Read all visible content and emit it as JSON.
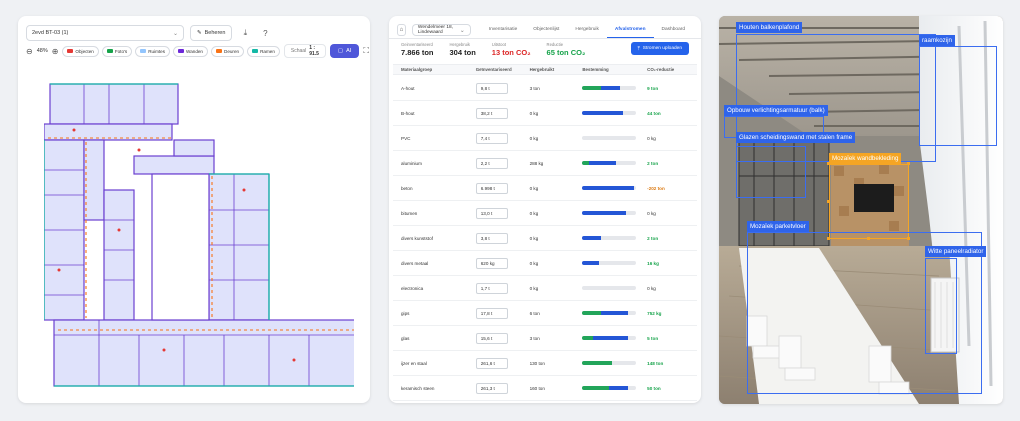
{
  "floorplan_panel": {
    "floor_select": "2evd BT-03 (1)",
    "manage_label": "Beheren",
    "zoom_value": "48%",
    "chips": [
      {
        "label": "Objecten",
        "color": "#e53935",
        "icon": "pin-icon"
      },
      {
        "label": "Foto's",
        "color": "#16a34a",
        "icon": "camera-pin-icon"
      },
      {
        "label": "Ruimtes",
        "color": "#93c5fd",
        "icon": "room-icon"
      },
      {
        "label": "Wanden",
        "color": "#6d28d9",
        "icon": "wall-icon"
      },
      {
        "label": "Deuren",
        "color": "#f97316",
        "icon": "door-icon"
      },
      {
        "label": "Ramen",
        "color": "#14b8a6",
        "icon": "window-icon"
      }
    ],
    "scale_label": "Schaal",
    "scale_value": "1 : 91.5",
    "ai_label": "AI"
  },
  "table_panel": {
    "address": "Wendelmeer 18, Lindewaard",
    "tabs": [
      {
        "label": "Inventarisatie",
        "active": false
      },
      {
        "label": "Objectenlijst",
        "active": false
      },
      {
        "label": "Hergebruik",
        "active": false
      },
      {
        "label": "Afvalstromen",
        "active": true
      },
      {
        "label": "Dashboard",
        "active": false
      }
    ],
    "summary": [
      {
        "label": "Geinventariseerd",
        "value": "7.866 ton",
        "tone": "normal"
      },
      {
        "label": "Hergebruik",
        "value": "304 ton",
        "tone": "normal"
      },
      {
        "label": "Uitstoot",
        "value": "13 ton CO₂",
        "tone": "red"
      },
      {
        "label": "Reductie",
        "value": "65 ton CO₂",
        "tone": "green"
      }
    ],
    "upload_label": "Stromen uploaden",
    "columns": [
      "Materiaalgroep",
      "Geïnventariseerd",
      "Hergebruikt",
      "Bestemming",
      "CO₂-reductie"
    ],
    "rows": [
      {
        "material": "A-hout",
        "inventoried": "9,8 t",
        "reused": "3 ton",
        "green_share": 0.35,
        "blue_share": 0.35,
        "co2": "9 ton",
        "co2_tone": "green"
      },
      {
        "material": "B-hout",
        "inventoried": "38,2 t",
        "reused": "0 kg",
        "green_share": 0.0,
        "blue_share": 0.75,
        "co2": "44 ton",
        "co2_tone": "green"
      },
      {
        "material": "PVC",
        "inventoried": "7,4 t",
        "reused": "0 kg",
        "green_share": 0.0,
        "blue_share": 0.0,
        "co2": "0 kg",
        "co2_tone": "normal"
      },
      {
        "material": "aluminium",
        "inventoried": "2,2 t",
        "reused": "288 kg",
        "green_share": 0.12,
        "blue_share": 0.5,
        "co2": "2 ton",
        "co2_tone": "green"
      },
      {
        "material": "beton",
        "inventoried": "6.998 t",
        "reused": "0 kg",
        "green_share": 0.0,
        "blue_share": 0.95,
        "co2": "-202 ton",
        "co2_tone": "red"
      },
      {
        "material": "bitumen",
        "inventoried": "13,0 t",
        "reused": "0 kg",
        "green_share": 0.0,
        "blue_share": 0.8,
        "co2": "0 kg",
        "co2_tone": "normal"
      },
      {
        "material": "divers kunststof",
        "inventoried": "3,8 t",
        "reused": "0 kg",
        "green_share": 0.0,
        "blue_share": 0.35,
        "co2": "2 ton",
        "co2_tone": "green"
      },
      {
        "material": "divers metaal",
        "inventoried": "620 kg",
        "reused": "0 kg",
        "green_share": 0.0,
        "blue_share": 0.3,
        "co2": "16 kg",
        "co2_tone": "green"
      },
      {
        "material": "electronica",
        "inventoried": "1,7 t",
        "reused": "0 kg",
        "green_share": 0.0,
        "blue_share": 0.0,
        "co2": "0 kg",
        "co2_tone": "normal"
      },
      {
        "material": "gips",
        "inventoried": "17,8 t",
        "reused": "6 ton",
        "green_share": 0.35,
        "blue_share": 0.5,
        "co2": "752 kg",
        "co2_tone": "green"
      },
      {
        "material": "glas",
        "inventoried": "15,6 t",
        "reused": "3 ton",
        "green_share": 0.2,
        "blue_share": 0.65,
        "co2": "5 ton",
        "co2_tone": "green"
      },
      {
        "material": "ijzer en staal",
        "inventoried": "261,6 t",
        "reused": "130 ton",
        "green_share": 0.55,
        "blue_share": 0.0,
        "co2": "148 ton",
        "co2_tone": "green"
      },
      {
        "material": "keramisch steen",
        "inventoried": "261,3 t",
        "reused": "160 ton",
        "green_share": 0.5,
        "blue_share": 0.35,
        "co2": "50 ton",
        "co2_tone": "green"
      }
    ]
  },
  "photo_panel": {
    "detections": [
      {
        "label": "Houten balkenplafond",
        "tone": "blue"
      },
      {
        "label": "raamkozijn",
        "tone": "blue"
      },
      {
        "label": "Opbouw verlichtingsarmatuur (balk)",
        "tone": "blue"
      },
      {
        "label": "Glazen scheidingswand met stalen frame",
        "tone": "blue"
      },
      {
        "label": "Mozaïek wandbekleding",
        "tone": "orange"
      },
      {
        "label": "Mozaïek parketvloer",
        "tone": "blue"
      },
      {
        "label": "Witte paneelradiator",
        "tone": "blue"
      }
    ]
  }
}
